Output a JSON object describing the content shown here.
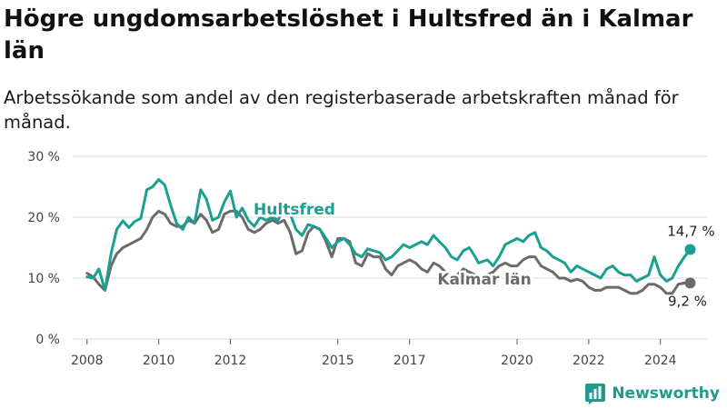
{
  "header": {
    "title": "Högre ungdomsarbetslöshet i Hultsfred än i Kalmar län",
    "subtitle": "Arbetssökande som andel av den registerbaserade arbetskraften månad för månad."
  },
  "brand": {
    "name": "Newsworthy",
    "icon": "bar-chart-logo-icon",
    "color": "#1f9a8d"
  },
  "chart_data": {
    "type": "line",
    "yticks": [
      "0 %",
      "10 %",
      "20 %",
      "30 %"
    ],
    "xticks": [
      "2008",
      "2010",
      "2012",
      "2015",
      "2017",
      "2020",
      "2022",
      "2024"
    ],
    "ylim": [
      0,
      30
    ],
    "xlim": [
      2007.6,
      2025.3
    ],
    "grid": true,
    "legend": "inline labels",
    "series": [
      {
        "name": "Hultsfred",
        "color": "#1a9f91",
        "end_label": "14,7 %",
        "points": [
          [
            2008.0,
            10.2
          ],
          [
            2008.17,
            10.0
          ],
          [
            2008.33,
            11.5
          ],
          [
            2008.5,
            8.0
          ],
          [
            2008.67,
            14.0
          ],
          [
            2008.83,
            18.0
          ],
          [
            2009.0,
            19.4
          ],
          [
            2009.17,
            18.3
          ],
          [
            2009.33,
            19.3
          ],
          [
            2009.5,
            19.8
          ],
          [
            2009.67,
            24.5
          ],
          [
            2009.83,
            25.0
          ],
          [
            2010.0,
            26.2
          ],
          [
            2010.17,
            25.3
          ],
          [
            2010.33,
            22.0
          ],
          [
            2010.5,
            19.0
          ],
          [
            2010.67,
            18.0
          ],
          [
            2010.83,
            20.0
          ],
          [
            2011.0,
            19.0
          ],
          [
            2011.17,
            24.5
          ],
          [
            2011.33,
            23.0
          ],
          [
            2011.5,
            19.5
          ],
          [
            2011.67,
            20.0
          ],
          [
            2011.83,
            22.5
          ],
          [
            2012.0,
            24.3
          ],
          [
            2012.17,
            20.0
          ],
          [
            2012.33,
            21.5
          ],
          [
            2012.5,
            19.5
          ],
          [
            2012.67,
            18.5
          ],
          [
            2012.83,
            20.0
          ],
          [
            2013.0,
            19.5
          ],
          [
            2013.17,
            20.0
          ],
          [
            2013.33,
            19.5
          ],
          [
            2013.5,
            21.8
          ],
          [
            2013.67,
            20.5
          ],
          [
            2013.83,
            18.0
          ],
          [
            2014.0,
            17.0
          ],
          [
            2014.17,
            18.8
          ],
          [
            2014.33,
            18.5
          ],
          [
            2014.5,
            18.0
          ],
          [
            2014.67,
            16.5
          ],
          [
            2014.83,
            15.0
          ],
          [
            2015.0,
            16.0
          ],
          [
            2015.17,
            16.5
          ],
          [
            2015.33,
            15.5
          ],
          [
            2015.5,
            14.0
          ],
          [
            2015.67,
            13.5
          ],
          [
            2015.83,
            14.8
          ],
          [
            2016.0,
            14.5
          ],
          [
            2016.17,
            14.2
          ],
          [
            2016.33,
            13.0
          ],
          [
            2016.5,
            13.5
          ],
          [
            2016.67,
            14.5
          ],
          [
            2016.83,
            15.5
          ],
          [
            2017.0,
            15.0
          ],
          [
            2017.17,
            15.5
          ],
          [
            2017.33,
            16.0
          ],
          [
            2017.5,
            15.5
          ],
          [
            2017.67,
            17.0
          ],
          [
            2017.83,
            16.0
          ],
          [
            2018.0,
            15.0
          ],
          [
            2018.17,
            13.5
          ],
          [
            2018.33,
            13.0
          ],
          [
            2018.5,
            14.5
          ],
          [
            2018.67,
            15.0
          ],
          [
            2018.83,
            13.5
          ],
          [
            2018.92,
            12.5
          ],
          [
            2019.17,
            13.0
          ],
          [
            2019.33,
            12.0
          ],
          [
            2019.5,
            13.5
          ],
          [
            2019.67,
            15.5
          ],
          [
            2019.83,
            16.0
          ],
          [
            2020.0,
            16.5
          ],
          [
            2020.17,
            16.0
          ],
          [
            2020.33,
            17.0
          ],
          [
            2020.5,
            17.5
          ],
          [
            2020.67,
            15.0
          ],
          [
            2020.83,
            14.5
          ],
          [
            2021.0,
            13.5
          ],
          [
            2021.17,
            13.0
          ],
          [
            2021.33,
            12.5
          ],
          [
            2021.5,
            11.0
          ],
          [
            2021.67,
            12.0
          ],
          [
            2021.83,
            11.5
          ],
          [
            2022.0,
            11.0
          ],
          [
            2022.17,
            10.5
          ],
          [
            2022.33,
            10.0
          ],
          [
            2022.5,
            11.5
          ],
          [
            2022.67,
            12.0
          ],
          [
            2022.83,
            11.0
          ],
          [
            2023.0,
            10.5
          ],
          [
            2023.17,
            10.5
          ],
          [
            2023.33,
            9.5
          ],
          [
            2023.5,
            10.0
          ],
          [
            2023.67,
            10.5
          ],
          [
            2023.83,
            13.5
          ],
          [
            2024.0,
            10.5
          ],
          [
            2024.17,
            9.5
          ],
          [
            2024.33,
            10.0
          ],
          [
            2024.5,
            12.0
          ],
          [
            2024.67,
            13.5
          ],
          [
            2024.83,
            14.7
          ]
        ]
      },
      {
        "name": "Kalmar län",
        "color": "#6b6b6b",
        "end_label": "9,2 %",
        "points": [
          [
            2008.0,
            10.8
          ],
          [
            2008.17,
            10.2
          ],
          [
            2008.33,
            9.0
          ],
          [
            2008.5,
            8.0
          ],
          [
            2008.67,
            12.0
          ],
          [
            2008.83,
            14.0
          ],
          [
            2009.0,
            15.0
          ],
          [
            2009.17,
            15.5
          ],
          [
            2009.33,
            16.0
          ],
          [
            2009.5,
            16.5
          ],
          [
            2009.67,
            18.0
          ],
          [
            2009.83,
            20.0
          ],
          [
            2010.0,
            21.0
          ],
          [
            2010.17,
            20.5
          ],
          [
            2010.33,
            19.0
          ],
          [
            2010.5,
            18.5
          ],
          [
            2010.67,
            18.5
          ],
          [
            2010.83,
            19.5
          ],
          [
            2011.0,
            19.0
          ],
          [
            2011.17,
            20.5
          ],
          [
            2011.33,
            19.5
          ],
          [
            2011.5,
            17.5
          ],
          [
            2011.67,
            18.0
          ],
          [
            2011.83,
            20.5
          ],
          [
            2012.0,
            21.0
          ],
          [
            2012.17,
            21.0
          ],
          [
            2012.33,
            20.0
          ],
          [
            2012.5,
            18.0
          ],
          [
            2012.67,
            17.5
          ],
          [
            2012.83,
            18.0
          ],
          [
            2013.0,
            19.0
          ],
          [
            2013.17,
            19.5
          ],
          [
            2013.33,
            19.0
          ],
          [
            2013.5,
            19.5
          ],
          [
            2013.67,
            17.5
          ],
          [
            2013.83,
            14.0
          ],
          [
            2014.0,
            14.5
          ],
          [
            2014.17,
            17.5
          ],
          [
            2014.33,
            18.5
          ],
          [
            2014.5,
            18.0
          ],
          [
            2014.67,
            16.0
          ],
          [
            2014.83,
            13.5
          ],
          [
            2015.0,
            16.5
          ],
          [
            2015.17,
            16.5
          ],
          [
            2015.33,
            16.0
          ],
          [
            2015.5,
            12.5
          ],
          [
            2015.67,
            12.0
          ],
          [
            2015.83,
            14.0
          ],
          [
            2016.0,
            13.5
          ],
          [
            2016.17,
            13.5
          ],
          [
            2016.33,
            11.5
          ],
          [
            2016.5,
            10.5
          ],
          [
            2016.67,
            12.0
          ],
          [
            2016.83,
            12.5
          ],
          [
            2017.0,
            13.0
          ],
          [
            2017.17,
            12.5
          ],
          [
            2017.33,
            11.5
          ],
          [
            2017.5,
            11.0
          ],
          [
            2017.67,
            12.5
          ],
          [
            2017.83,
            12.0
          ],
          [
            2018.0,
            11.0
          ],
          [
            2018.17,
            10.5
          ],
          [
            2018.33,
            10.5
          ],
          [
            2018.5,
            11.5
          ],
          [
            2018.67,
            11.0
          ],
          [
            2018.83,
            10.5
          ],
          [
            2018.92,
            10.0
          ],
          [
            2019.17,
            10.5
          ],
          [
            2019.33,
            11.0
          ],
          [
            2019.5,
            12.0
          ],
          [
            2019.67,
            12.5
          ],
          [
            2019.83,
            12.0
          ],
          [
            2020.0,
            12.0
          ],
          [
            2020.17,
            13.0
          ],
          [
            2020.33,
            13.5
          ],
          [
            2020.5,
            13.5
          ],
          [
            2020.67,
            12.0
          ],
          [
            2020.83,
            11.5
          ],
          [
            2021.0,
            11.0
          ],
          [
            2021.17,
            10.0
          ],
          [
            2021.33,
            10.0
          ],
          [
            2021.5,
            9.5
          ],
          [
            2021.67,
            9.8
          ],
          [
            2021.83,
            9.5
          ],
          [
            2022.0,
            8.5
          ],
          [
            2022.17,
            8.0
          ],
          [
            2022.33,
            8.0
          ],
          [
            2022.5,
            8.5
          ],
          [
            2022.67,
            8.5
          ],
          [
            2022.83,
            8.5
          ],
          [
            2023.0,
            8.0
          ],
          [
            2023.17,
            7.5
          ],
          [
            2023.33,
            7.5
          ],
          [
            2023.5,
            8.0
          ],
          [
            2023.67,
            9.0
          ],
          [
            2023.83,
            9.0
          ],
          [
            2024.0,
            8.5
          ],
          [
            2024.17,
            7.5
          ],
          [
            2024.33,
            7.5
          ],
          [
            2024.5,
            9.0
          ],
          [
            2024.67,
            9.2
          ],
          [
            2024.83,
            9.2
          ]
        ]
      }
    ]
  }
}
